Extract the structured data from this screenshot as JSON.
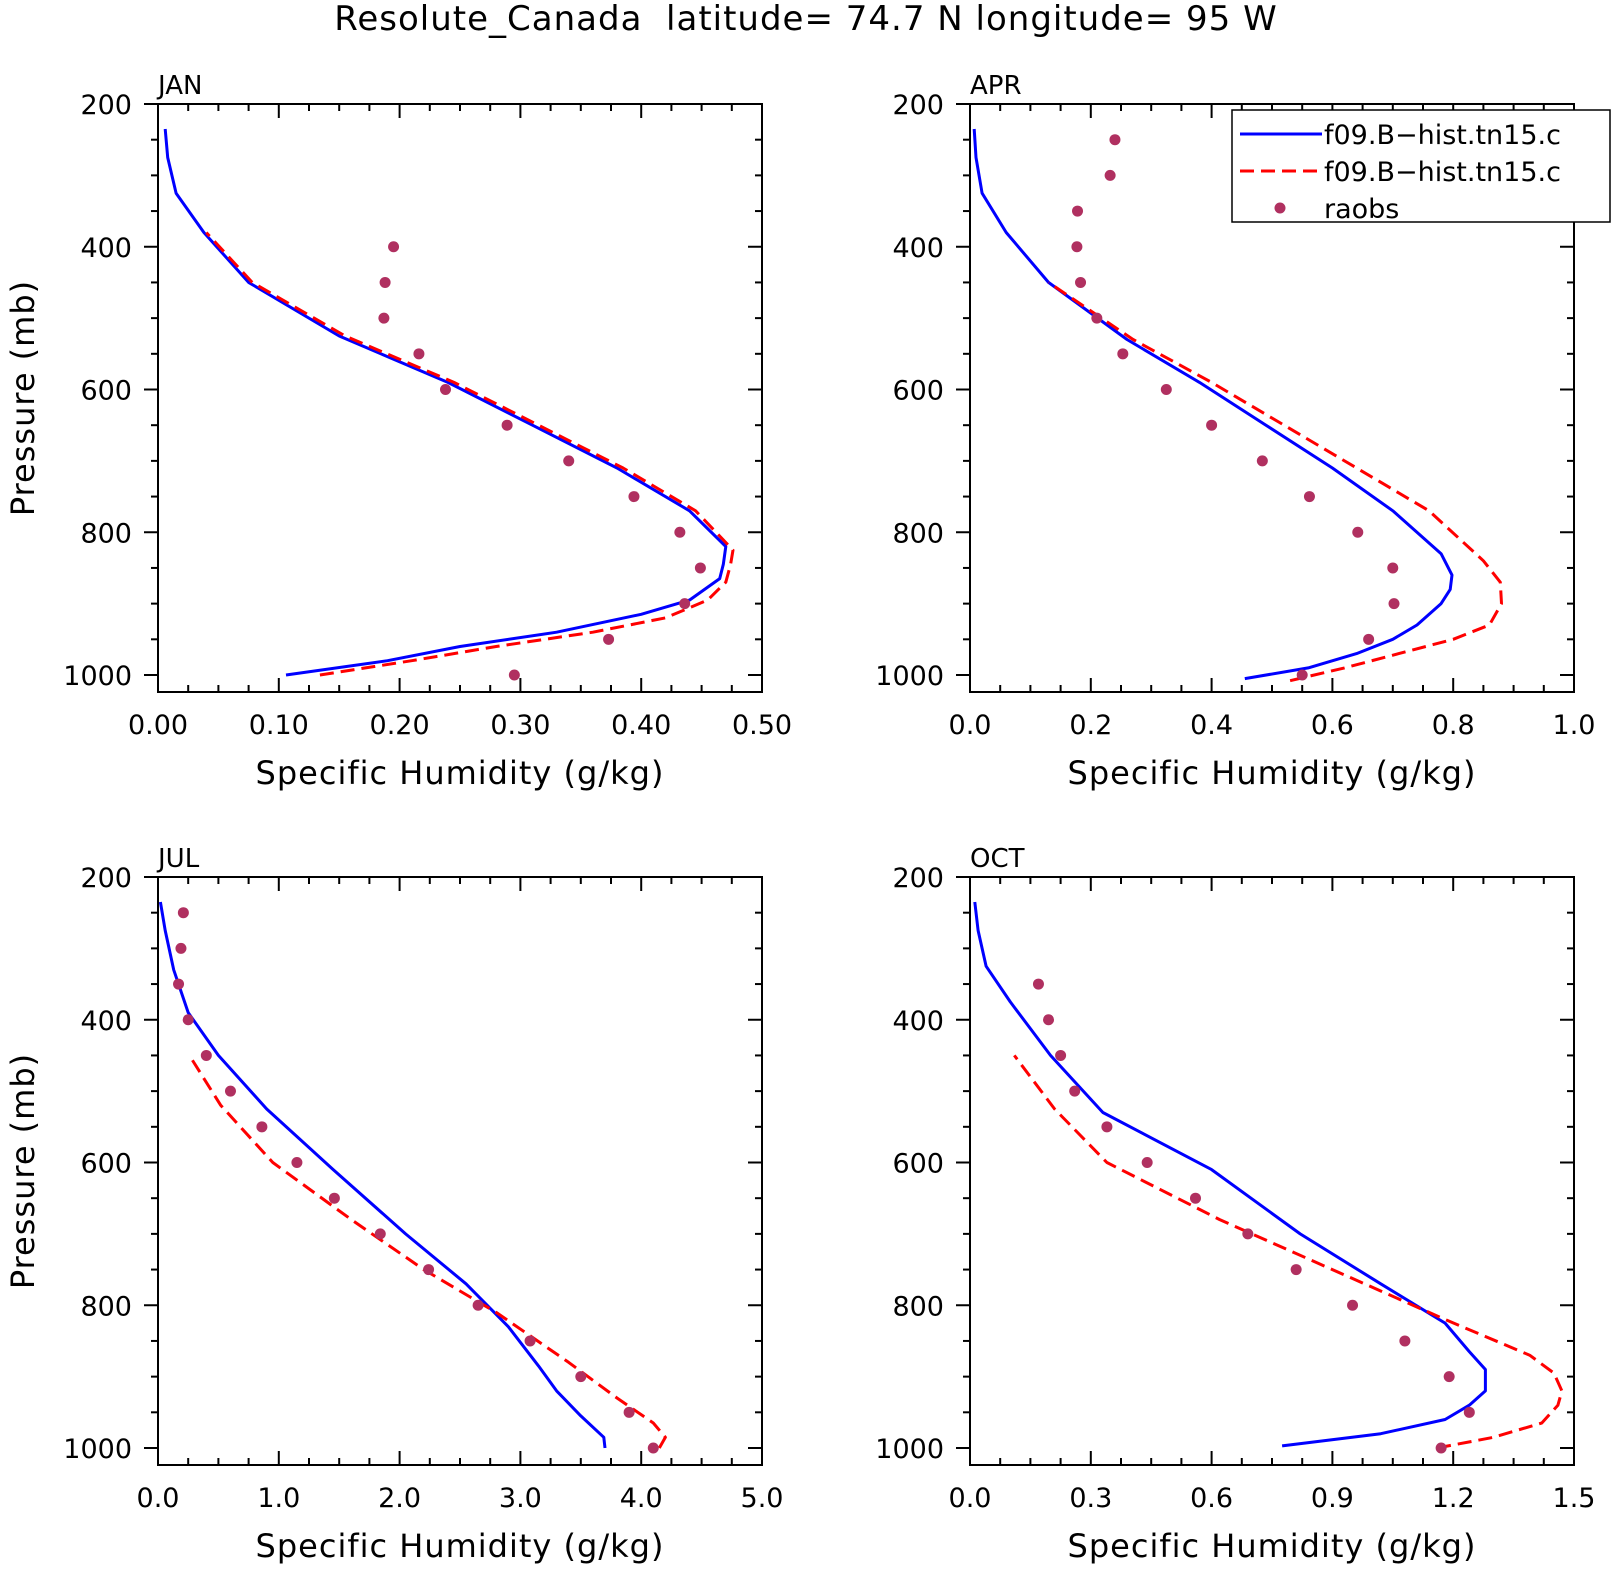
{
  "title": "Resolute_Canada  latitude= 74.7 N longitude= 95 W",
  "legend": {
    "placement": "top-right of APR panel",
    "entries": [
      {
        "label": "f09.B−hist.tn15.c",
        "style": "solid",
        "color": "#0000ff"
      },
      {
        "label": "f09.B−hist.tn15.c",
        "style": "dashed",
        "color": "#ff0000"
      },
      {
        "label": "raobs",
        "style": "marker",
        "color": "#b03060"
      }
    ]
  },
  "colors": {
    "model1": "#0000ff",
    "model2": "#ff0000",
    "raobs": "#b03060"
  },
  "chart_data": [
    {
      "type": "line",
      "panel": "JAN",
      "xlabel": "Specific Humidity (g/kg)",
      "ylabel": "Pressure (mb)",
      "xlim": [
        0,
        0.5
      ],
      "ylim": [
        1000,
        200
      ],
      "xticks": [
        "0.00",
        "0.10",
        "0.20",
        "0.30",
        "0.40",
        "0.50"
      ],
      "xtick_values": [
        0,
        0.1,
        0.2,
        0.3,
        0.4,
        0.5
      ],
      "yticks": [
        "200",
        "400",
        "600",
        "800",
        "1000"
      ],
      "series": [
        {
          "name": "f09.B−hist.tn15.c",
          "style": "solid",
          "x": [
            0.106,
            0.19,
            0.25,
            0.33,
            0.4,
            0.44,
            0.465,
            0.468,
            0.47,
            0.44,
            0.38,
            0.31,
            0.24,
            0.15,
            0.075,
            0.038,
            0.015,
            0.008,
            0.006
          ],
          "y": [
            1000,
            980,
            960,
            940,
            915,
            895,
            865,
            845,
            820,
            770,
            710,
            650,
            590,
            525,
            450,
            380,
            325,
            275,
            235
          ]
        },
        {
          "name": "f09.B−hist.tn15.c",
          "style": "dashed",
          "x": [
            0.134,
            0.21,
            0.28,
            0.36,
            0.42,
            0.455,
            0.47,
            0.474,
            0.476,
            0.445,
            0.385,
            0.315,
            0.245,
            0.155,
            0.078,
            0.04
          ],
          "y": [
            1000,
            980,
            960,
            940,
            920,
            895,
            870,
            845,
            825,
            770,
            710,
            650,
            590,
            525,
            450,
            380
          ]
        }
      ],
      "raobs": {
        "x": [
          0.295,
          0.373,
          0.436,
          0.449,
          0.432,
          0.394,
          0.34,
          0.289,
          0.238,
          0.216,
          0.187,
          0.188,
          0.195
        ],
        "y": [
          1000,
          950,
          900,
          850,
          800,
          750,
          700,
          650,
          600,
          550,
          500,
          450,
          400
        ]
      }
    },
    {
      "type": "line",
      "panel": "APR",
      "xlabel": "Specific Humidity (g/kg)",
      "ylabel": "",
      "xlim": [
        0,
        1.0
      ],
      "ylim": [
        1000,
        200
      ],
      "xticks": [
        "0.0",
        "0.2",
        "0.4",
        "0.6",
        "0.8",
        "1.0"
      ],
      "xtick_values": [
        0,
        0.2,
        0.4,
        0.6,
        0.8,
        1.0
      ],
      "yticks": [
        "200",
        "400",
        "600",
        "800",
        "1000"
      ],
      "series": [
        {
          "name": "f09.B−hist.tn15.c",
          "style": "solid",
          "x": [
            0.455,
            0.56,
            0.64,
            0.7,
            0.74,
            0.78,
            0.795,
            0.798,
            0.78,
            0.7,
            0.6,
            0.49,
            0.38,
            0.26,
            0.13,
            0.06,
            0.02,
            0.01,
            0.007
          ],
          "y": [
            1005,
            990,
            970,
            950,
            930,
            900,
            880,
            860,
            830,
            770,
            710,
            650,
            590,
            530,
            450,
            380,
            325,
            275,
            235
          ]
        },
        {
          "name": "f09.B−hist.tn15.c",
          "style": "dashed",
          "x": [
            0.53,
            0.62,
            0.71,
            0.8,
            0.86,
            0.88,
            0.878,
            0.85,
            0.76,
            0.64,
            0.52,
            0.4,
            0.27,
            0.13
          ],
          "y": [
            1008,
            990,
            970,
            950,
            930,
            900,
            870,
            840,
            770,
            710,
            650,
            590,
            530,
            450
          ]
        }
      ],
      "raobs": {
        "x": [
          0.55,
          0.66,
          0.702,
          0.7,
          0.642,
          0.562,
          0.484,
          0.4,
          0.325,
          0.253,
          0.21,
          0.183,
          0.177,
          0.178,
          0.232,
          0.24
        ],
        "y": [
          1000,
          950,
          900,
          850,
          800,
          750,
          700,
          650,
          600,
          550,
          500,
          450,
          400,
          350,
          300,
          250
        ]
      }
    },
    {
      "type": "line",
      "panel": "JUL",
      "xlabel": "Specific Humidity (g/kg)",
      "ylabel": "Pressure (mb)",
      "xlim": [
        0,
        5.0
      ],
      "ylim": [
        1000,
        200
      ],
      "xticks": [
        "0.0",
        "1.0",
        "2.0",
        "3.0",
        "4.0",
        "5.0"
      ],
      "xtick_values": [
        0,
        1,
        2,
        3,
        4,
        5
      ],
      "yticks": [
        "200",
        "400",
        "600",
        "800",
        "1000"
      ],
      "series": [
        {
          "name": "f09.B−hist.tn15.c",
          "style": "solid",
          "x": [
            3.7,
            3.69,
            3.5,
            3.3,
            3.15,
            2.9,
            2.55,
            2.05,
            1.45,
            0.9,
            0.5,
            0.25,
            0.13,
            0.06,
            0.02
          ],
          "y": [
            1000,
            985,
            955,
            920,
            885,
            830,
            770,
            700,
            610,
            525,
            450,
            390,
            330,
            275,
            235
          ]
        },
        {
          "name": "f09.B−hist.tn15.c",
          "style": "dashed",
          "x": [
            4.15,
            4.2,
            4.1,
            3.8,
            3.4,
            2.8,
            2.2,
            1.6,
            0.95,
            0.52,
            0.26
          ],
          "y": [
            1000,
            985,
            965,
            930,
            880,
            810,
            750,
            680,
            600,
            520,
            450
          ]
        }
      ],
      "raobs": {
        "x": [
          4.1,
          3.9,
          3.5,
          3.08,
          2.65,
          2.24,
          1.84,
          1.46,
          1.15,
          0.86,
          0.6,
          0.4,
          0.25,
          0.17,
          0.19,
          0.21
        ],
        "y": [
          1000,
          950,
          900,
          850,
          800,
          750,
          700,
          650,
          600,
          550,
          500,
          450,
          400,
          350,
          300,
          250
        ]
      }
    },
    {
      "type": "line",
      "panel": "OCT",
      "xlabel": "Specific Humidity (g/kg)",
      "ylabel": "",
      "xlim": [
        0,
        1.5
      ],
      "ylim": [
        1000,
        200
      ],
      "xticks": [
        "0.0",
        "0.3",
        "0.6",
        "0.9",
        "1.2",
        "1.5"
      ],
      "xtick_values": [
        0,
        0.3,
        0.6,
        0.9,
        1.2,
        1.5
      ],
      "yticks": [
        "200",
        "400",
        "600",
        "800",
        "1000"
      ],
      "series": [
        {
          "name": "f09.B−hist.tn15.c",
          "style": "solid",
          "x": [
            0.775,
            1.02,
            1.18,
            1.24,
            1.28,
            1.28,
            1.24,
            1.18,
            1.02,
            0.82,
            0.6,
            0.33,
            0.2,
            0.1,
            0.04,
            0.02,
            0.012
          ],
          "y": [
            997,
            980,
            960,
            940,
            920,
            890,
            865,
            825,
            770,
            700,
            610,
            530,
            450,
            375,
            325,
            275,
            235
          ]
        },
        {
          "name": "f09.B−hist.tn15.c",
          "style": "dashed",
          "x": [
            1.16,
            1.3,
            1.42,
            1.46,
            1.47,
            1.45,
            1.39,
            1.18,
            0.9,
            0.62,
            0.34,
            0.21,
            0.11
          ],
          "y": [
            1000,
            985,
            965,
            940,
            920,
            895,
            870,
            820,
            750,
            680,
            600,
            525,
            450
          ]
        }
      ],
      "raobs": {
        "x": [
          1.17,
          1.24,
          1.19,
          1.08,
          0.95,
          0.81,
          0.69,
          0.56,
          0.44,
          0.34,
          0.26,
          0.225,
          0.195,
          0.17
        ],
        "y": [
          1000,
          950,
          900,
          850,
          800,
          750,
          700,
          650,
          600,
          550,
          500,
          450,
          400,
          350
        ]
      }
    }
  ]
}
